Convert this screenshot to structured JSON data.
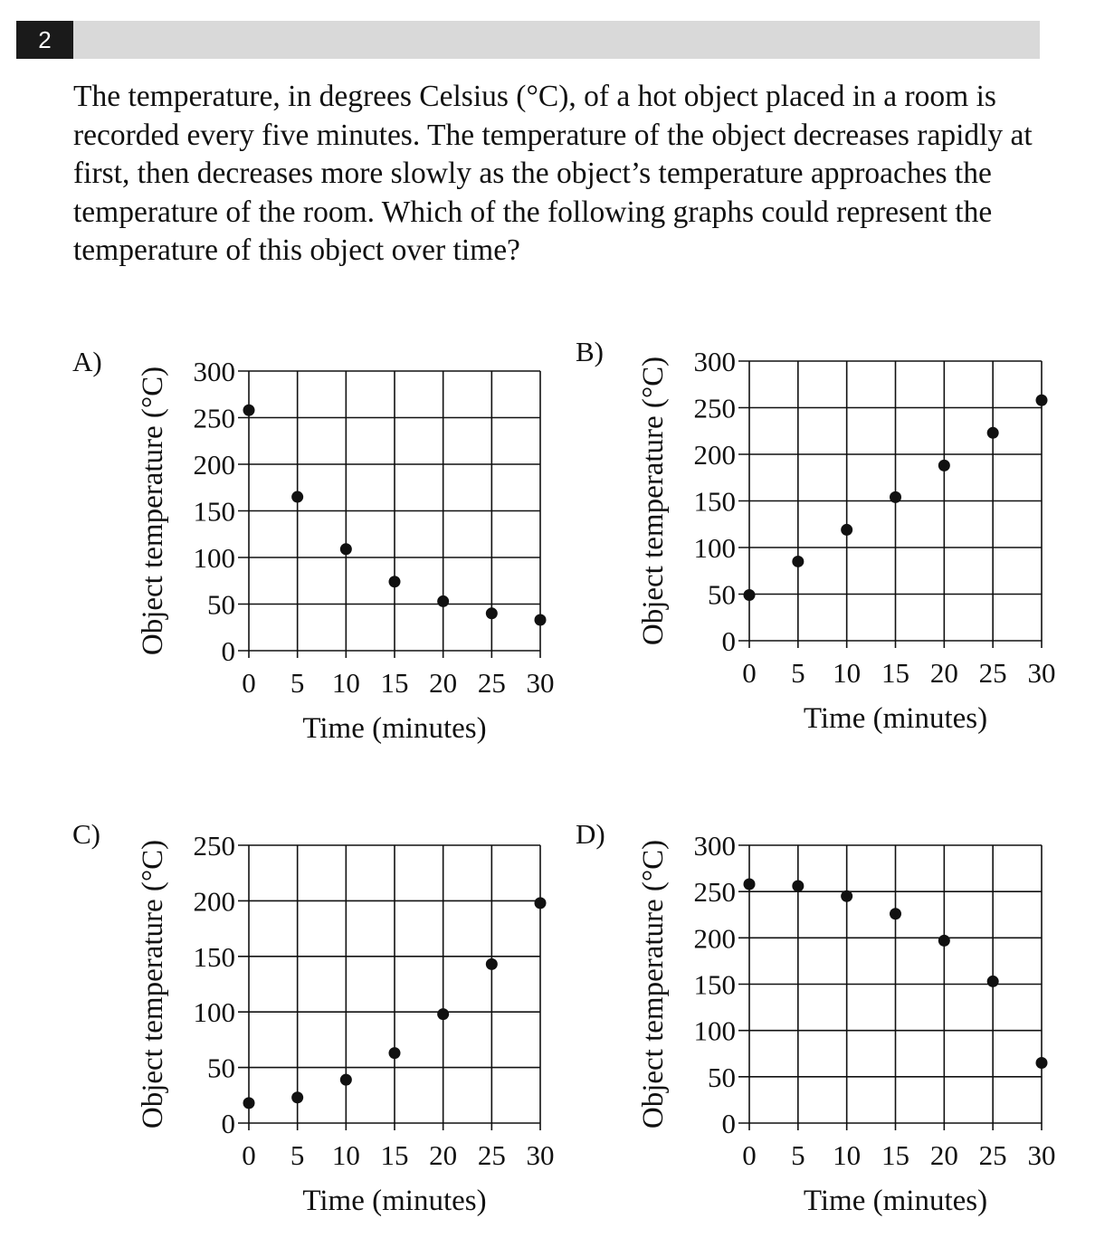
{
  "question": {
    "number": "2",
    "text": "The temperature, in degrees Celsius (°C), of a hot object placed in a room is recorded every five minutes. The temperature of the object decreases rapidly at first, then decreases more slowly as the object’s temperature approaches the temperature of the room. Which of the following graphs could represent the temperature of this object over time?"
  },
  "options": [
    {
      "label": "A)"
    },
    {
      "label": "B)"
    },
    {
      "label": "C)"
    },
    {
      "label": "D)"
    }
  ],
  "chart_data": [
    {
      "type": "scatter",
      "option": "A)",
      "xlabel": "Time (minutes)",
      "ylabel": "Object temperature (°C)",
      "x": [
        0,
        5,
        10,
        15,
        20,
        25,
        30
      ],
      "y": [
        258,
        165,
        109,
        74,
        53,
        40,
        33
      ],
      "xticks": [
        "0",
        "5",
        "10",
        "15",
        "20",
        "25",
        "30"
      ],
      "yticks": [
        "0",
        "50",
        "100",
        "150",
        "200",
        "250",
        "300"
      ],
      "xlim": [
        0,
        30
      ],
      "ylim": [
        0,
        300
      ],
      "grid": true
    },
    {
      "type": "scatter",
      "option": "B)",
      "xlabel": "Time (minutes)",
      "ylabel": "Object temperature (°C)",
      "x": [
        0,
        5,
        10,
        15,
        20,
        25,
        30
      ],
      "y": [
        49,
        85,
        119,
        154,
        188,
        223,
        258
      ],
      "xticks": [
        "0",
        "5",
        "10",
        "15",
        "20",
        "25",
        "30"
      ],
      "yticks": [
        "0",
        "50",
        "100",
        "150",
        "200",
        "250",
        "300"
      ],
      "xlim": [
        0,
        30
      ],
      "ylim": [
        0,
        300
      ],
      "grid": true
    },
    {
      "type": "scatter",
      "option": "C)",
      "xlabel": "Time (minutes)",
      "ylabel": "Object temperature (°C)",
      "x": [
        0,
        5,
        10,
        15,
        20,
        25,
        30
      ],
      "y": [
        18,
        23,
        39,
        63,
        98,
        143,
        198
      ],
      "xticks": [
        "0",
        "5",
        "10",
        "15",
        "20",
        "25",
        "30"
      ],
      "yticks": [
        "0",
        "50",
        "100",
        "150",
        "200",
        "250"
      ],
      "xlim": [
        0,
        30
      ],
      "ylim": [
        0,
        250
      ],
      "grid": true
    },
    {
      "type": "scatter",
      "option": "D)",
      "xlabel": "Time (minutes)",
      "ylabel": "Object temperature (°C)",
      "x": [
        0,
        5,
        10,
        15,
        20,
        25,
        30
      ],
      "y": [
        258,
        256,
        245,
        226,
        197,
        153,
        65
      ],
      "xticks": [
        "0",
        "5",
        "10",
        "15",
        "20",
        "25",
        "30"
      ],
      "yticks": [
        "0",
        "50",
        "100",
        "150",
        "200",
        "250",
        "300"
      ],
      "xlim": [
        0,
        30
      ],
      "ylim": [
        0,
        300
      ],
      "grid": true
    }
  ]
}
